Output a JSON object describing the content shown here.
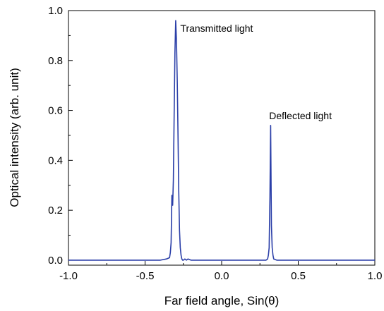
{
  "chart_data": {
    "type": "line",
    "title": "",
    "xlabel": "Far field angle, Sin(θ)",
    "ylabel": "Optical intensity (arb. unit)",
    "xlim": [
      -1.0,
      1.0
    ],
    "ylim": [
      -0.02,
      1.0
    ],
    "x_ticks": [
      -1.0,
      -0.5,
      0.0,
      0.5,
      1.0
    ],
    "x_tick_labels": [
      "-1.0",
      "-0.5",
      "0.0",
      "0.5",
      "1.0"
    ],
    "y_ticks": [
      0.0,
      0.2,
      0.4,
      0.6,
      0.8,
      1.0
    ],
    "y_tick_labels": [
      "0.0",
      "0.2",
      "0.4",
      "0.6",
      "0.8",
      "1.0"
    ],
    "grid": false,
    "line_color": "#2b3fa8",
    "series": [
      {
        "x": [
          -1.0,
          -0.5,
          -0.4,
          -0.36,
          -0.34,
          -0.335,
          -0.33,
          -0.325,
          -0.32,
          -0.315,
          -0.31,
          -0.305,
          -0.3,
          -0.295,
          -0.29,
          -0.285,
          -0.28,
          -0.275,
          -0.27,
          -0.265,
          -0.26,
          -0.255,
          -0.25,
          -0.24,
          -0.23,
          -0.22,
          -0.2,
          -0.1,
          0.0,
          0.25,
          0.29,
          0.3,
          0.305,
          0.31,
          0.315,
          0.32,
          0.325,
          0.33,
          0.335,
          0.34,
          0.36,
          0.4,
          0.6,
          1.0
        ],
        "y": [
          0.0,
          0.0,
          0.0,
          0.005,
          0.01,
          0.03,
          0.07,
          0.26,
          0.22,
          0.32,
          0.58,
          0.83,
          0.96,
          0.88,
          0.72,
          0.5,
          0.28,
          0.12,
          0.05,
          0.02,
          0.005,
          0.0,
          0.0,
          0.005,
          0.0,
          0.005,
          0.0,
          0.0,
          0.0,
          0.0,
          0.0,
          0.005,
          0.02,
          0.05,
          0.25,
          0.54,
          0.14,
          0.05,
          0.02,
          0.005,
          0.0,
          0.0,
          0.0,
          0.0
        ]
      }
    ],
    "annotations": [
      {
        "text": "Transmitted light",
        "x": -0.27,
        "y": 0.915
      },
      {
        "text": "Deflected light",
        "x": 0.31,
        "y": 0.565
      }
    ]
  }
}
